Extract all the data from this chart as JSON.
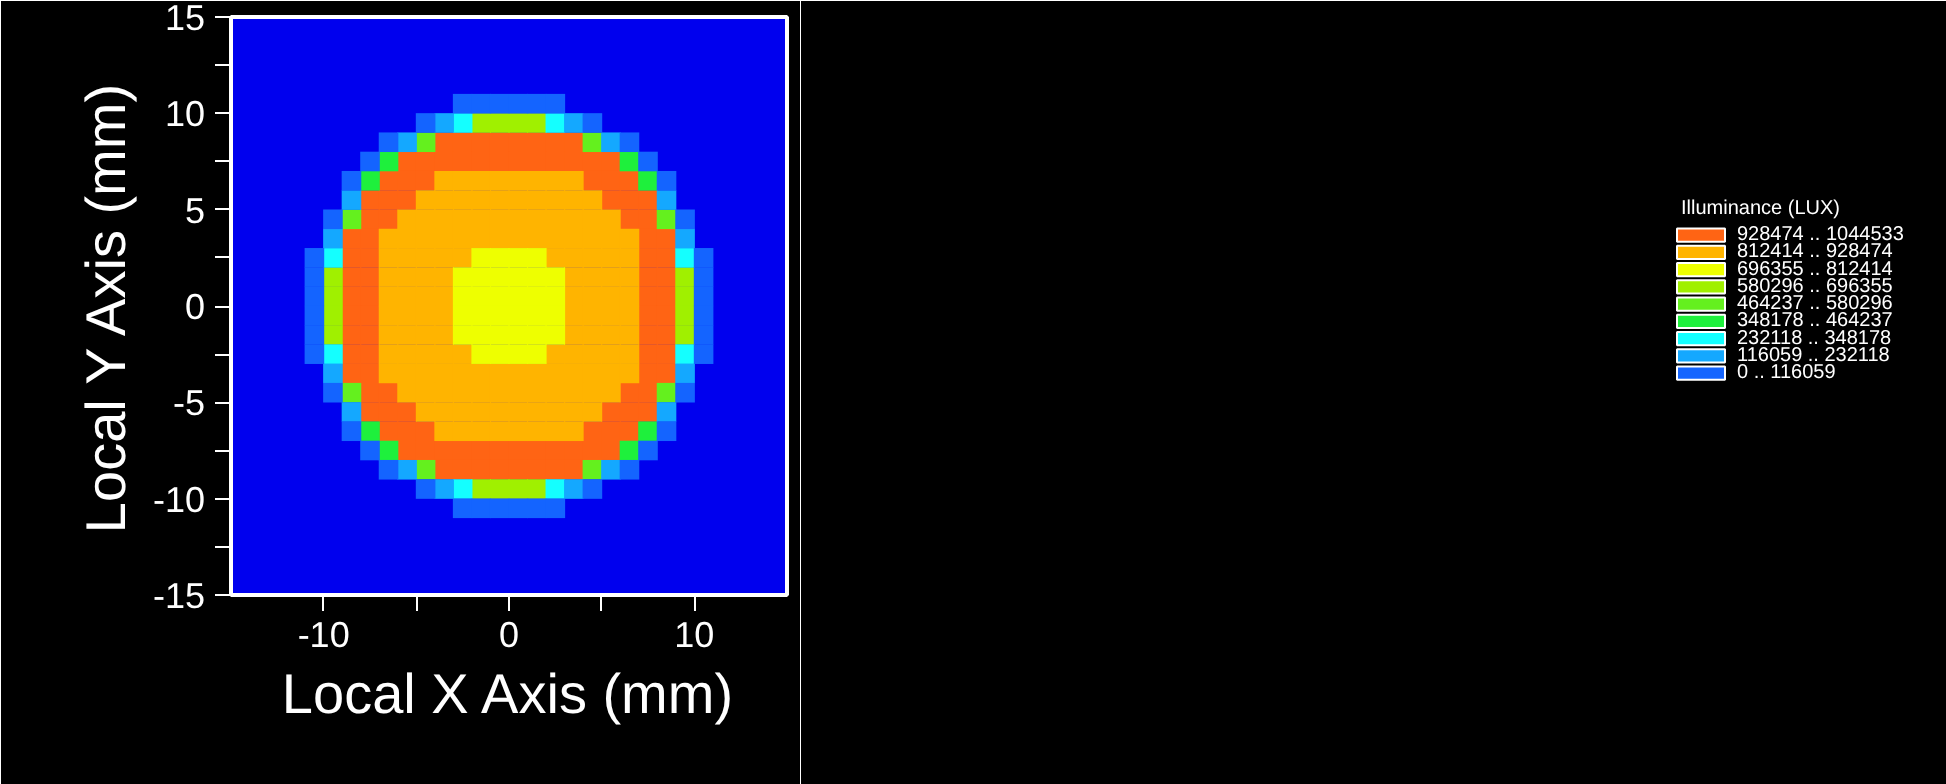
{
  "chart_data": {
    "type": "scatter",
    "marker": "square",
    "legend": "right",
    "xlabel": "Local X Axis (mm)",
    "ylabel": "Local Y Axis (mm)",
    "legend_title": "Illuminance (LUX)",
    "xlim": [
      -15,
      15
    ],
    "ylim": [
      -15,
      15
    ],
    "xticks": [
      -10,
      {
        "value": -5,
        "label": null
      },
      0,
      {
        "value": 5,
        "label": null
      },
      10
    ],
    "yticks": [
      -15,
      {
        "value": -12.5,
        "label": null
      },
      -10,
      {
        "value": -7.5,
        "label": null
      },
      -5,
      {
        "value": -2.5,
        "label": null
      },
      0,
      {
        "value": 2.5,
        "label": null
      },
      5,
      {
        "value": 7.5,
        "label": null
      },
      10,
      {
        "value": 12.5,
        "label": null
      },
      15
    ],
    "series": [
      {
        "name": "928474 .. 1044533",
        "color": "#ff6414",
        "x": [
          -3.5,
          -2.5,
          -1.5,
          -0.5,
          0.5,
          1.5,
          2.5,
          3.5,
          -5.5,
          -4.5,
          -3.5,
          -2.5,
          -1.5,
          -0.5,
          0.5,
          1.5,
          2.5,
          3.5,
          4.5,
          5.5,
          -6.5,
          -5.5,
          -4.5,
          4.5,
          5.5,
          6.5,
          -7.5,
          -6.5,
          -5.5,
          5.5,
          6.5,
          7.5,
          -7.5,
          -6.5,
          6.5,
          7.5,
          -8.5,
          -7.5,
          7.5,
          8.5,
          -8.5,
          -7.5,
          7.5,
          8.5,
          -8.5,
          -7.5,
          7.5,
          8.5,
          -8.5,
          -7.5,
          7.5,
          8.5,
          -8.5,
          -7.5,
          7.5,
          8.5,
          -8.5,
          -7.5,
          7.5,
          8.5,
          -8.5,
          -7.5,
          7.5,
          8.5,
          -8.5,
          -7.5,
          7.5,
          8.5,
          -7.5,
          -6.5,
          6.5,
          7.5,
          -7.5,
          -6.5,
          -5.5,
          5.5,
          6.5,
          7.5,
          -6.5,
          -5.5,
          -4.5,
          4.5,
          5.5,
          6.5,
          -5.5,
          -4.5,
          -3.5,
          -2.5,
          -1.5,
          -0.5,
          0.5,
          1.5,
          2.5,
          3.5,
          4.5,
          5.5,
          -3.5,
          -2.5,
          -1.5,
          -0.5,
          0.5,
          1.5,
          2.5,
          3.5
        ],
        "values": [
          8.5,
          8.5,
          8.5,
          8.5,
          8.5,
          8.5,
          8.5,
          8.5,
          7.5,
          7.5,
          7.5,
          7.5,
          7.5,
          7.5,
          7.5,
          7.5,
          7.5,
          7.5,
          7.5,
          7.5,
          6.5,
          6.5,
          6.5,
          6.5,
          6.5,
          6.5,
          5.5,
          5.5,
          5.5,
          5.5,
          5.5,
          5.5,
          4.5,
          4.5,
          4.5,
          4.5,
          3.5,
          3.5,
          3.5,
          3.5,
          2.5,
          2.5,
          2.5,
          2.5,
          1.5,
          1.5,
          1.5,
          1.5,
          0.5,
          0.5,
          0.5,
          0.5,
          -0.5,
          -0.5,
          -0.5,
          -0.5,
          -1.5,
          -1.5,
          -1.5,
          -1.5,
          -2.5,
          -2.5,
          -2.5,
          -2.5,
          -3.5,
          -3.5,
          -3.5,
          -3.5,
          -4.5,
          -4.5,
          -4.5,
          -4.5,
          -5.5,
          -5.5,
          -5.5,
          -5.5,
          -5.5,
          -5.5,
          -6.5,
          -6.5,
          -6.5,
          -6.5,
          -6.5,
          -6.5,
          -7.5,
          -7.5,
          -7.5,
          -7.5,
          -7.5,
          -7.5,
          -7.5,
          -7.5,
          -7.5,
          -7.5,
          -7.5,
          -7.5,
          -8.5,
          -8.5,
          -8.5,
          -8.5,
          -8.5,
          -8.5,
          -8.5,
          -8.5
        ]
      },
      {
        "name": "812414 .. 928474",
        "color": "#ffb400",
        "x": [
          -3.5,
          -2.5,
          -1.5,
          -0.5,
          0.5,
          1.5,
          2.5,
          3.5,
          -4.5,
          -3.5,
          -2.5,
          -1.5,
          -0.5,
          0.5,
          1.5,
          2.5,
          3.5,
          4.5,
          -5.5,
          -4.5,
          -3.5,
          -2.5,
          -1.5,
          -0.5,
          0.5,
          1.5,
          2.5,
          3.5,
          4.5,
          5.5,
          -6.5,
          -5.5,
          -4.5,
          -3.5,
          -2.5,
          -1.5,
          -0.5,
          0.5,
          1.5,
          2.5,
          3.5,
          4.5,
          5.5,
          6.5,
          -6.5,
          -5.5,
          -4.5,
          -3.5,
          -2.5,
          2.5,
          3.5,
          4.5,
          5.5,
          6.5,
          -6.5,
          -5.5,
          -4.5,
          -3.5,
          3.5,
          4.5,
          5.5,
          6.5,
          -6.5,
          -5.5,
          -4.5,
          -3.5,
          3.5,
          4.5,
          5.5,
          6.5,
          -6.5,
          -5.5,
          -4.5,
          -3.5,
          3.5,
          4.5,
          5.5,
          6.5,
          -6.5,
          -5.5,
          -4.5,
          -3.5,
          3.5,
          4.5,
          5.5,
          6.5,
          -6.5,
          -5.5,
          -4.5,
          -3.5,
          -2.5,
          2.5,
          3.5,
          4.5,
          5.5,
          6.5,
          -6.5,
          -5.5,
          -4.5,
          -3.5,
          -2.5,
          -1.5,
          -0.5,
          0.5,
          1.5,
          2.5,
          3.5,
          4.5,
          5.5,
          6.5,
          -5.5,
          -4.5,
          -3.5,
          -2.5,
          -1.5,
          -0.5,
          0.5,
          1.5,
          2.5,
          3.5,
          4.5,
          5.5,
          -4.5,
          -3.5,
          -2.5,
          -1.5,
          -0.5,
          0.5,
          1.5,
          2.5,
          3.5,
          4.5,
          -3.5,
          -2.5,
          -1.5,
          -0.5,
          0.5,
          1.5,
          2.5,
          3.5
        ],
        "values": [
          6.5,
          6.5,
          6.5,
          6.5,
          6.5,
          6.5,
          6.5,
          6.5,
          5.5,
          5.5,
          5.5,
          5.5,
          5.5,
          5.5,
          5.5,
          5.5,
          5.5,
          5.5,
          4.5,
          4.5,
          4.5,
          4.5,
          4.5,
          4.5,
          4.5,
          4.5,
          4.5,
          4.5,
          4.5,
          4.5,
          3.5,
          3.5,
          3.5,
          3.5,
          3.5,
          3.5,
          3.5,
          3.5,
          3.5,
          3.5,
          3.5,
          3.5,
          3.5,
          3.5,
          2.5,
          2.5,
          2.5,
          2.5,
          2.5,
          2.5,
          2.5,
          2.5,
          2.5,
          2.5,
          1.5,
          1.5,
          1.5,
          1.5,
          1.5,
          1.5,
          1.5,
          1.5,
          0.5,
          0.5,
          0.5,
          0.5,
          0.5,
          0.5,
          0.5,
          0.5,
          -0.5,
          -0.5,
          -0.5,
          -0.5,
          -0.5,
          -0.5,
          -0.5,
          -0.5,
          -1.5,
          -1.5,
          -1.5,
          -1.5,
          -1.5,
          -1.5,
          -1.5,
          -1.5,
          -2.5,
          -2.5,
          -2.5,
          -2.5,
          -2.5,
          -2.5,
          -2.5,
          -2.5,
          -2.5,
          -2.5,
          -3.5,
          -3.5,
          -3.5,
          -3.5,
          -3.5,
          -3.5,
          -3.5,
          -3.5,
          -3.5,
          -3.5,
          -3.5,
          -3.5,
          -3.5,
          -3.5,
          -4.5,
          -4.5,
          -4.5,
          -4.5,
          -4.5,
          -4.5,
          -4.5,
          -4.5,
          -4.5,
          -4.5,
          -4.5,
          -4.5,
          -5.5,
          -5.5,
          -5.5,
          -5.5,
          -5.5,
          -5.5,
          -5.5,
          -5.5,
          -5.5,
          -5.5,
          -6.5,
          -6.5,
          -6.5,
          -6.5,
          -6.5,
          -6.5,
          -6.5,
          -6.5
        ]
      },
      {
        "name": "696355 .. 812414",
        "color": "#eeff00",
        "x": [
          -1.5,
          -0.5,
          0.5,
          1.5,
          -2.5,
          -1.5,
          -0.5,
          0.5,
          1.5,
          2.5,
          -2.5,
          -1.5,
          -0.5,
          0.5,
          1.5,
          2.5,
          -2.5,
          -1.5,
          -0.5,
          0.5,
          1.5,
          2.5,
          -2.5,
          -1.5,
          -0.5,
          0.5,
          1.5,
          2.5,
          -1.5,
          -0.5,
          0.5,
          1.5
        ],
        "values": [
          2.5,
          2.5,
          2.5,
          2.5,
          1.5,
          1.5,
          1.5,
          1.5,
          1.5,
          1.5,
          0.5,
          0.5,
          0.5,
          0.5,
          0.5,
          0.5,
          -0.5,
          -0.5,
          -0.5,
          -0.5,
          -0.5,
          -0.5,
          -1.5,
          -1.5,
          -1.5,
          -1.5,
          -1.5,
          -1.5,
          -2.5,
          -2.5,
          -2.5,
          -2.5
        ]
      },
      {
        "name": "580296 .. 696355",
        "color": "#a0f000",
        "x": [
          -1.5,
          -0.5,
          0.5,
          1.5,
          -9.5,
          9.5,
          -9.5,
          9.5,
          -9.5,
          9.5,
          -9.5,
          9.5,
          -1.5,
          -0.5,
          0.5,
          1.5
        ],
        "values": [
          9.5,
          9.5,
          9.5,
          9.5,
          1.5,
          1.5,
          0.5,
          0.5,
          -0.5,
          -0.5,
          -1.5,
          -1.5,
          -9.5,
          -9.5,
          -9.5,
          -9.5
        ]
      },
      {
        "name": "464237 .. 580296",
        "color": "#64f01e",
        "x": [
          -4.5,
          4.5,
          -8.5,
          8.5,
          -8.5,
          8.5,
          -4.5,
          4.5
        ],
        "values": [
          8.5,
          8.5,
          4.5,
          4.5,
          -4.5,
          -4.5,
          -8.5,
          -8.5
        ]
      },
      {
        "name": "348178 .. 464237",
        "color": "#1ef03c",
        "x": [
          -6.5,
          6.5,
          -7.5,
          7.5,
          -7.5,
          7.5,
          -6.5,
          6.5
        ],
        "values": [
          7.5,
          7.5,
          6.5,
          6.5,
          -6.5,
          -6.5,
          -7.5,
          -7.5
        ]
      },
      {
        "name": "232118 .. 348178",
        "color": "#14ffff",
        "x": [
          -2.5,
          2.5,
          -9.5,
          9.5,
          -9.5,
          9.5,
          -2.5,
          2.5
        ],
        "values": [
          9.5,
          9.5,
          2.5,
          2.5,
          -2.5,
          -2.5,
          -9.5,
          -9.5
        ]
      },
      {
        "name": "116059 .. 232118",
        "color": "#14a8ff",
        "x": [
          -3.5,
          3.5,
          -5.5,
          5.5,
          -8.5,
          8.5,
          -9.5,
          9.5,
          -9.5,
          9.5,
          -8.5,
          8.5,
          -5.5,
          5.5,
          -3.5,
          3.5
        ],
        "values": [
          9.5,
          9.5,
          8.5,
          8.5,
          5.5,
          5.5,
          3.5,
          3.5,
          -3.5,
          -3.5,
          -5.5,
          -5.5,
          -8.5,
          -8.5,
          -9.5,
          -9.5
        ]
      },
      {
        "name": "0 .. 116059",
        "color": "#1464ff",
        "x": [
          -2.5,
          -1.5,
          -0.5,
          0.5,
          1.5,
          2.5,
          -4.5,
          4.5,
          -6.5,
          6.5,
          -7.5,
          7.5,
          -8.5,
          8.5,
          -9.5,
          9.5,
          -10.5,
          10.5,
          -10.5,
          10.5,
          -10.5,
          10.5,
          -10.5,
          10.5,
          -10.5,
          10.5,
          -10.5,
          10.5,
          -9.5,
          9.5,
          -8.5,
          8.5,
          -7.5,
          7.5,
          -6.5,
          6.5,
          -4.5,
          4.5,
          -2.5,
          -1.5,
          -0.5,
          0.5,
          1.5,
          2.5
        ],
        "values": [
          10.5,
          10.5,
          10.5,
          10.5,
          10.5,
          10.5,
          9.5,
          9.5,
          8.5,
          8.5,
          7.5,
          7.5,
          6.5,
          6.5,
          4.5,
          4.5,
          2.5,
          2.5,
          1.5,
          1.5,
          0.5,
          0.5,
          -0.5,
          -0.5,
          -1.5,
          -1.5,
          -2.5,
          -2.5,
          -4.5,
          -4.5,
          -6.5,
          -6.5,
          -7.5,
          -7.5,
          -8.5,
          -8.5,
          -9.5,
          -9.5,
          -10.5,
          -10.5,
          -10.5,
          -10.5,
          -10.5,
          -10.5
        ]
      }
    ]
  }
}
